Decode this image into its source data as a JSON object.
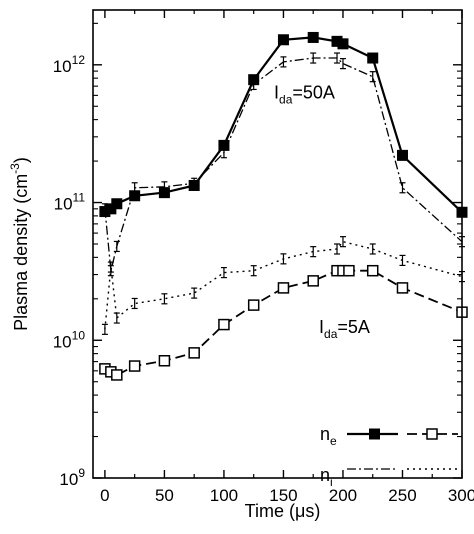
{
  "chart_data": {
    "type": "line",
    "xlabel": "Time (μs)",
    "ylabel_main": "Plasma density (cm",
    "ylabel_sup": "-3",
    "ylabel_close": ")",
    "xlim": [
      -10,
      300
    ],
    "ylim": [
      1000000000.0,
      2500000000000.0
    ],
    "yscale": "log",
    "x_ticks": [
      0,
      50,
      100,
      150,
      200,
      250,
      300
    ],
    "x_tick_labels": [
      "0",
      "50",
      "100",
      "150",
      "200",
      "250",
      "300"
    ],
    "y_ticks": [
      1000000000.0,
      10000000000.0,
      100000000000.0,
      1000000000000.0
    ],
    "y_tick_labels": [
      {
        "base": "10",
        "exp": "9"
      },
      {
        "base": "10",
        "exp": "10"
      },
      {
        "base": "10",
        "exp": "11"
      },
      {
        "base": "10",
        "exp": "12"
      }
    ],
    "annotations": [
      {
        "base": "I",
        "sub": "da",
        "rest": "=50A",
        "x": 150,
        "y": 630000000000.0
      },
      {
        "base": "I",
        "sub": "da",
        "rest": "=5A",
        "x": 150,
        "y": 12500000000.0
      }
    ],
    "legend": {
      "position": "bottom-right",
      "entries": [
        {
          "base": "n",
          "sub": "e"
        },
        {
          "base": "n",
          "sub": "i"
        }
      ]
    },
    "series": [
      {
        "style": "ne-50A",
        "x": [
          0,
          5,
          10,
          25,
          50,
          75,
          100,
          125,
          150,
          175,
          195,
          200,
          225,
          250,
          300
        ],
        "y": [
          86000000000.0,
          90000000000.0,
          98000000000.0,
          112000000000.0,
          118000000000.0,
          133000000000.0,
          260000000000.0,
          780000000000.0,
          1520000000000.0,
          1580000000000.0,
          1480000000000.0,
          1420000000000.0,
          1120000000000.0,
          220000000000.0,
          85000000000.0
        ]
      },
      {
        "style": "ni-50A",
        "x": [
          0,
          5,
          10,
          25,
          50,
          75,
          100,
          125,
          150,
          175,
          195,
          200,
          225,
          250,
          300
        ],
        "y": [
          90000000000.0,
          32000000000.0,
          48000000000.0,
          128000000000.0,
          130000000000.0,
          138000000000.0,
          230000000000.0,
          720000000000.0,
          1050000000000.0,
          1120000000000.0,
          1120000000000.0,
          1020000000000.0,
          820000000000.0,
          128000000000.0,
          52000000000.0
        ]
      },
      {
        "style": "ne-5A",
        "x": [
          0,
          5,
          10,
          25,
          50,
          75,
          100,
          125,
          150,
          175,
          195,
          200,
          205,
          225,
          250,
          300
        ],
        "y": [
          6200000000.0,
          5900000000.0,
          5600000000.0,
          6500000000.0,
          7100000000.0,
          8100000000.0,
          13000000000.0,
          18000000000.0,
          24000000000.0,
          27000000000.0,
          32000000000.0,
          32000000000.0,
          32000000000.0,
          32000000000.0,
          24000000000.0,
          16000000000.0
        ]
      },
      {
        "style": "ni-5A",
        "x": [
          0,
          5,
          10,
          25,
          50,
          75,
          100,
          125,
          150,
          175,
          195,
          200,
          225,
          250,
          300
        ],
        "y": [
          12000000000.0,
          34000000000.0,
          14500000000.0,
          18500000000.0,
          20000000000.0,
          22000000000.0,
          31000000000.0,
          32000000000.0,
          39000000000.0,
          44000000000.0,
          46000000000.0,
          52000000000.0,
          46000000000.0,
          38000000000.0,
          29000000000.0
        ]
      }
    ]
  }
}
